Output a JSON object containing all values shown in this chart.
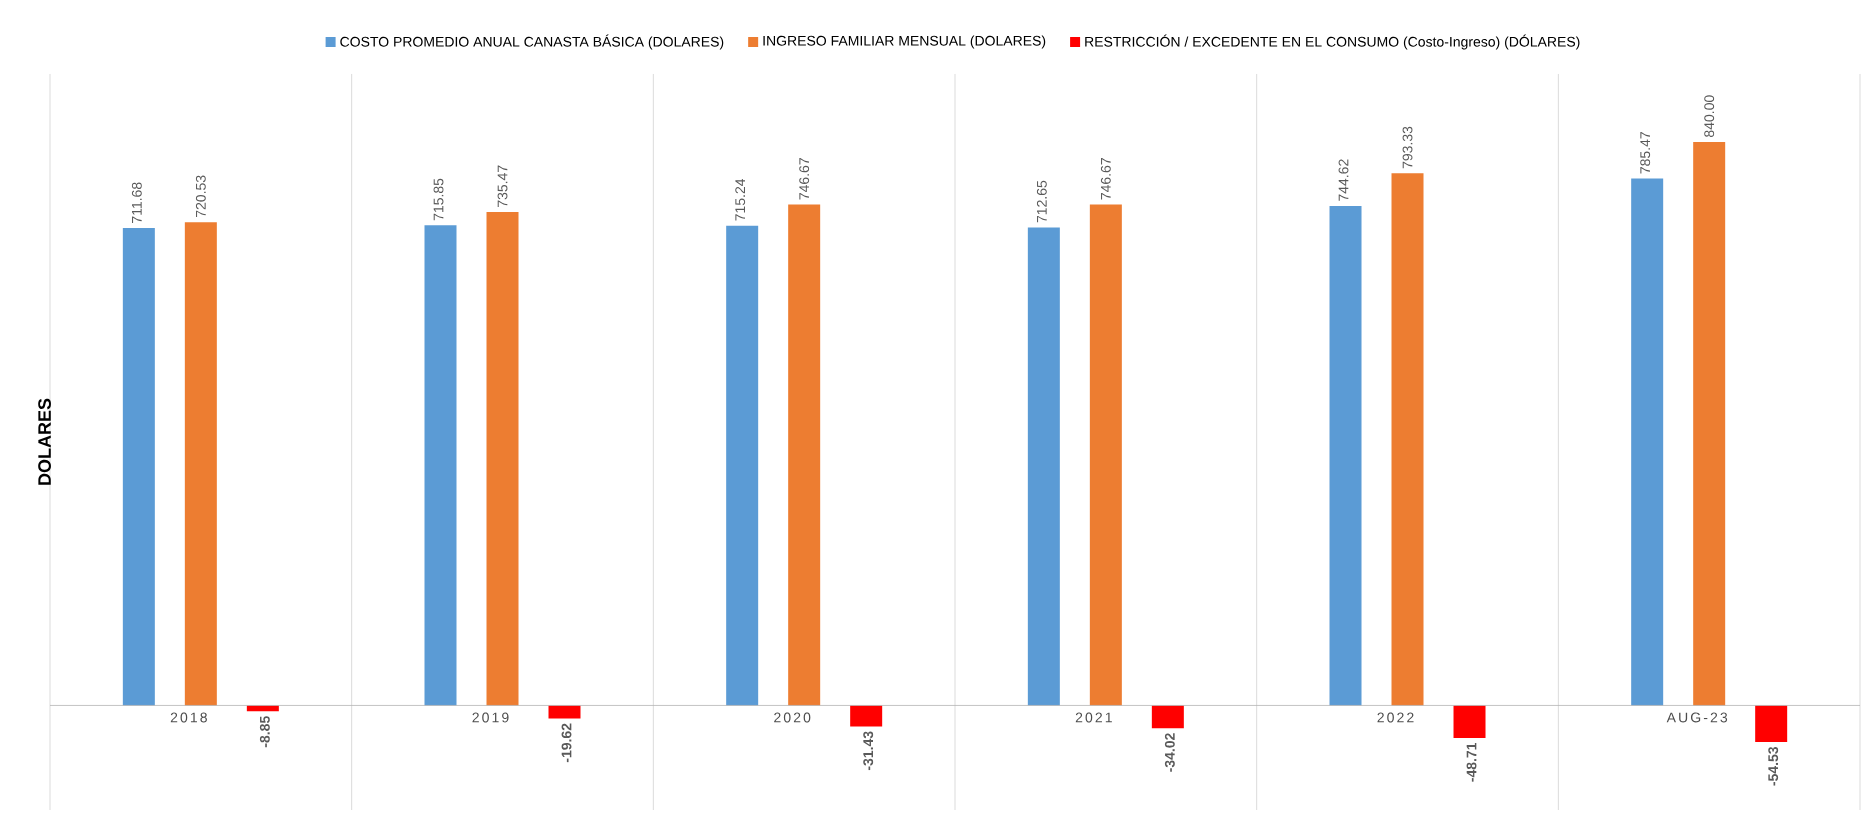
{
  "chart_data": {
    "type": "bar",
    "ylabel": "DOLARES",
    "categories": [
      "2018",
      "2019",
      "2020",
      "2021",
      "2022",
      "AUG-23"
    ],
    "series": [
      {
        "name": "COSTO PROMEDIO ANUAL CANASTA BÁSICA (DOLARES)",
        "color": "#5b9bd5",
        "values": [
          711.68,
          715.85,
          715.24,
          712.65,
          744.62,
          785.47
        ],
        "value_labels": [
          "711.68",
          "715.85",
          "715.24",
          "712.65",
          "744.62",
          "785.47"
        ]
      },
      {
        "name": "INGRESO FAMILIAR MENSUAL (DOLARES)",
        "color": "#ed7d31",
        "values": [
          720.53,
          735.47,
          746.67,
          746.67,
          793.33,
          840.0
        ],
        "value_labels": [
          "720.53",
          "735.47",
          "746.67",
          "746.67",
          "793.33",
          "840.00"
        ]
      },
      {
        "name": "RESTRICCIÓN / EXCEDENTE EN EL CONSUMO (Costo-Ingreso) (DÓLARES)",
        "color": "#ff0000",
        "values": [
          -8.85,
          -19.62,
          -31.43,
          -34.02,
          -48.71,
          -54.53
        ],
        "value_labels": [
          "-8.85",
          "-19.62",
          "-31.43",
          "-34.02",
          "-48.71",
          "-54.53"
        ]
      }
    ],
    "grid": "x",
    "legend": "top"
  }
}
